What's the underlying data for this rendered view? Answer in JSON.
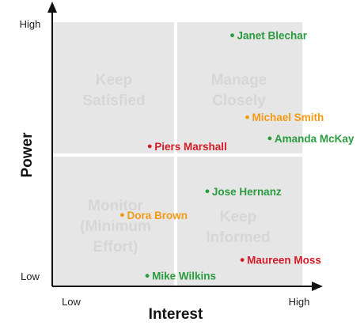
{
  "chart_data": {
    "type": "scatter",
    "title": "",
    "xlabel": "Interest",
    "ylabel": "Power",
    "xlim": [
      0,
      10
    ],
    "ylim": [
      0,
      10
    ],
    "x_ticks": {
      "low": "Low",
      "high": "High"
    },
    "y_ticks": {
      "low": "Low",
      "high": "High"
    },
    "quadrants": {
      "top_left": [
        "Keep",
        "Satisfied"
      ],
      "top_right": [
        "Manage",
        "Closely"
      ],
      "bottom_left": [
        "Monitor",
        "(Minimum",
        "Effort)"
      ],
      "bottom_right": [
        "Keep",
        "Informed"
      ]
    },
    "colors": {
      "green": "#2a9c3f",
      "orange": "#f29a13",
      "red": "#d51a28",
      "quadrant_fill": "#e6e6e6"
    },
    "points": [
      {
        "name": "Janet Blechar",
        "x": 7.2,
        "y": 9.5,
        "color": "green"
      },
      {
        "name": "Michael Smith",
        "x": 7.8,
        "y": 6.4,
        "color": "orange"
      },
      {
        "name": "Amanda McKay",
        "x": 8.7,
        "y": 5.6,
        "color": "green"
      },
      {
        "name": "Piers Marshall",
        "x": 3.9,
        "y": 5.3,
        "color": "red"
      },
      {
        "name": "Jose Hernanz",
        "x": 6.2,
        "y": 3.6,
        "color": "green"
      },
      {
        "name": "Dora Brown",
        "x": 2.8,
        "y": 2.7,
        "color": "orange"
      },
      {
        "name": "Maureen Moss",
        "x": 7.6,
        "y": 1.0,
        "color": "red"
      },
      {
        "name": "Mike Wilkins",
        "x": 3.8,
        "y": 0.4,
        "color": "green"
      }
    ]
  }
}
